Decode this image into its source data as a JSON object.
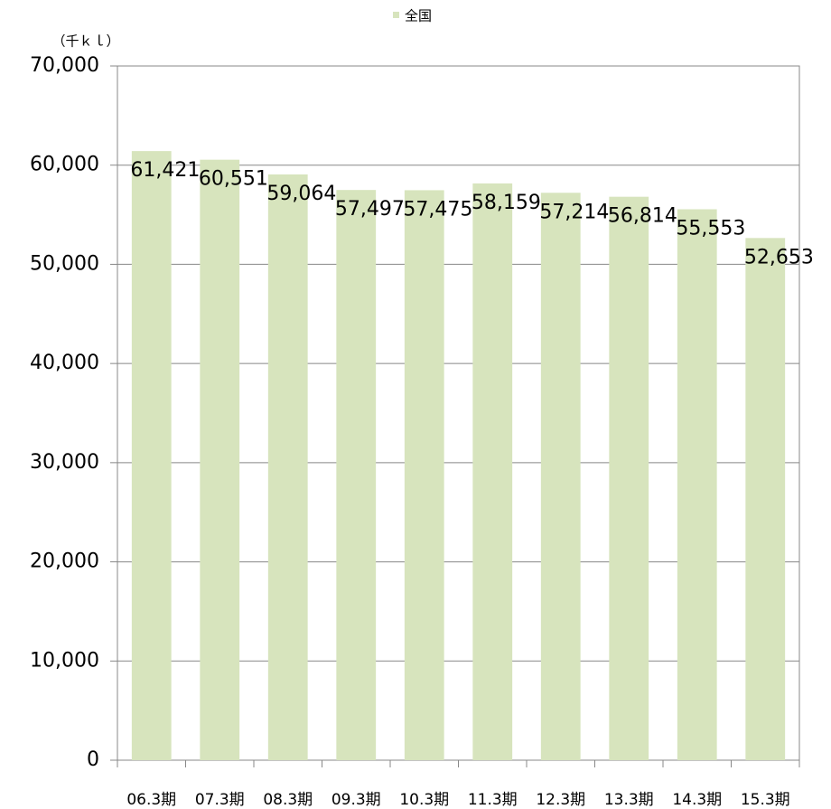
{
  "chart_data": {
    "type": "bar",
    "unit_label": "（千ｋｌ）",
    "legend": "全国",
    "categories": [
      "06.3期",
      "07.3期",
      "08.3期",
      "09.3期",
      "10.3期",
      "11.3期",
      "12.3期",
      "13.3期",
      "14.3期",
      "15.3期"
    ],
    "values": [
      61421,
      60551,
      59064,
      57497,
      57475,
      58159,
      57214,
      56814,
      55553,
      52653
    ],
    "value_labels": [
      "61,421",
      "60,551",
      "59,064",
      "57,497",
      "57,475",
      "58,159",
      "57,214",
      "56,814",
      "55,553",
      "52,653"
    ],
    "color": "#d7e4bd",
    "ylim": [
      0,
      70000
    ],
    "yticks": [
      0,
      {
        "value": 10000,
        "label": "10,000"
      },
      {
        "value": 20000,
        "label": "20,000"
      },
      {
        "value": 30000,
        "label": "30,000"
      },
      {
        "value": 40000,
        "label": "40,000"
      },
      {
        "value": 50000,
        "label": "50,000"
      },
      {
        "value": 60000,
        "label": "60,000"
      },
      {
        "value": 70000,
        "label": "70,000"
      }
    ],
    "grid": true
  }
}
